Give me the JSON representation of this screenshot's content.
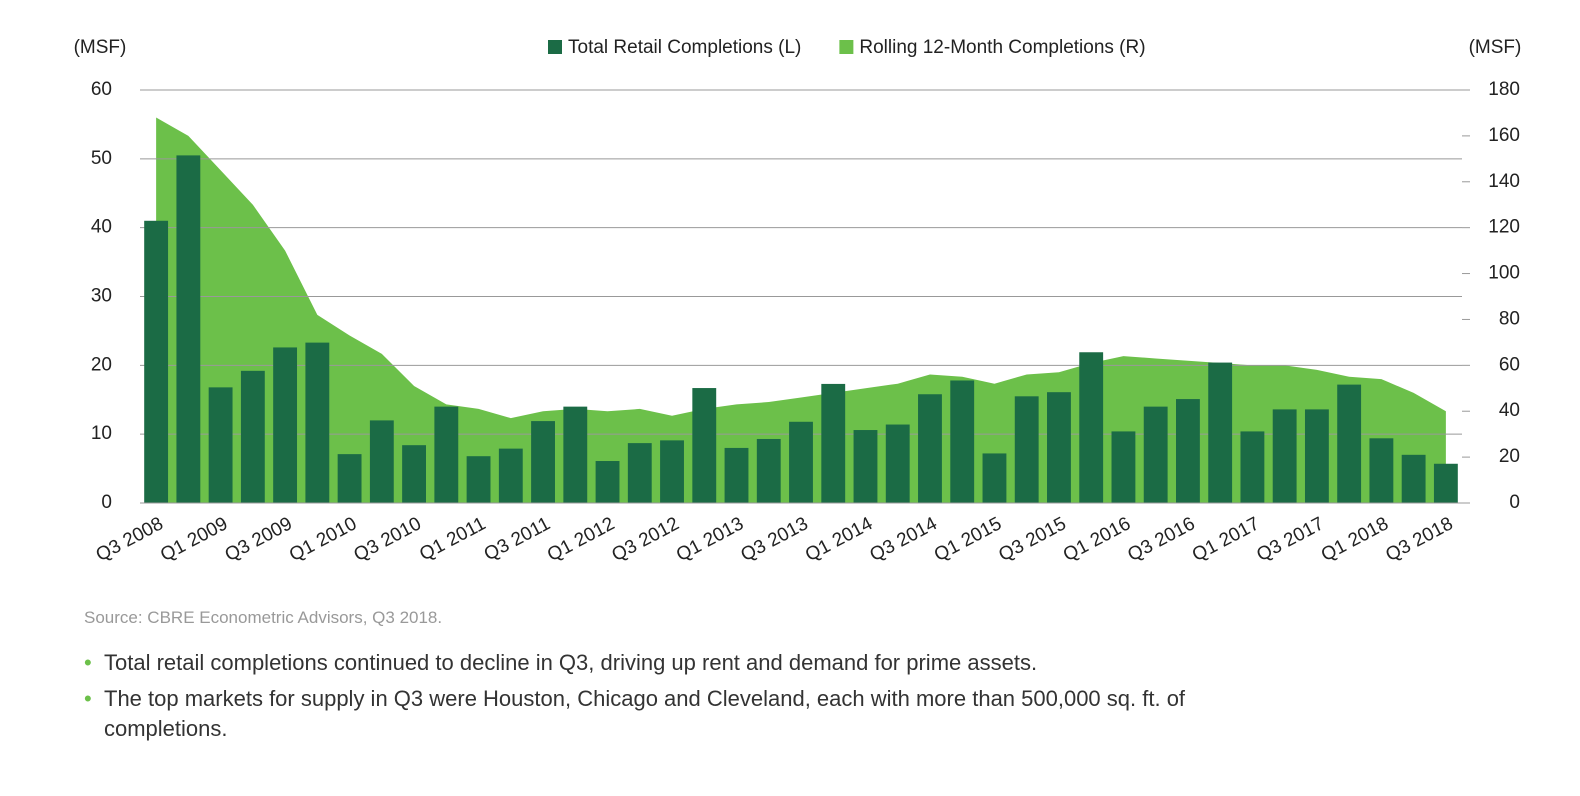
{
  "chart_data": {
    "type": "bar_area",
    "left_unit": "(MSF)",
    "right_unit": "(MSF)",
    "categories": [
      "Q3 2008",
      null,
      "Q1 2009",
      null,
      "Q3 2009",
      null,
      "Q1 2010",
      null,
      "Q3 2010",
      null,
      "Q1 2011",
      null,
      "Q3 2011",
      null,
      "Q1 2012",
      null,
      "Q3 2012",
      null,
      "Q1 2013",
      null,
      "Q3 2013",
      null,
      "Q1 2014",
      null,
      "Q3 2014",
      null,
      "Q1 2015",
      null,
      "Q3 2015",
      null,
      "Q1 2016",
      null,
      "Q3 2016",
      null,
      "Q1 2017",
      null,
      "Q3 2017",
      null,
      "Q1 2018",
      null,
      "Q3 2018"
    ],
    "series": [
      {
        "name": "Total Retail Completions (L)",
        "color": "#1b6b45",
        "kind": "bar",
        "values": [
          41,
          50.5,
          16.8,
          19.2,
          22.6,
          23.3,
          7.1,
          12,
          8.4,
          14,
          6.8,
          7.9,
          11.9,
          14,
          6.1,
          8.7,
          9.1,
          16.7,
          8,
          9.3,
          11.8,
          17.3,
          10.6,
          11.4,
          15.8,
          17.8,
          7.2,
          15.5,
          16.1,
          21.9,
          10.4,
          14,
          15.1,
          20.4,
          10.4,
          13.6,
          13.6,
          17.2,
          9.4,
          7,
          5.7
        ]
      },
      {
        "name": "Rolling 12-Month Completions (R)",
        "color": "#6cc04a",
        "kind": "area",
        "axis": "y2",
        "values": [
          168,
          160,
          145,
          130,
          110,
          82,
          73,
          65,
          51,
          43,
          41,
          37,
          40,
          41,
          40,
          41,
          38,
          41,
          43,
          44,
          46,
          48,
          50,
          52,
          56,
          55,
          52,
          56,
          57,
          61,
          64,
          63,
          62,
          61,
          60,
          60,
          58,
          55,
          54,
          48,
          40
        ]
      }
    ],
    "ylim": [
      0,
      60
    ],
    "yticks": [
      0,
      10,
      20,
      30,
      40,
      50,
      60
    ],
    "y2lim": [
      0,
      180
    ],
    "y2ticks": [
      0,
      20,
      40,
      60,
      80,
      100,
      120,
      140,
      160,
      180
    ],
    "grid": true,
    "source": "Source: CBRE Econometric Advisors, Q3 2018.",
    "notes": [
      "Total retail completions continued to decline in Q3, driving up rent and demand for prime assets.",
      "The top markets for supply in Q3 were Houston, Chicago and Cleveland, each with more than 500,000 sq. ft. of completions."
    ]
  }
}
